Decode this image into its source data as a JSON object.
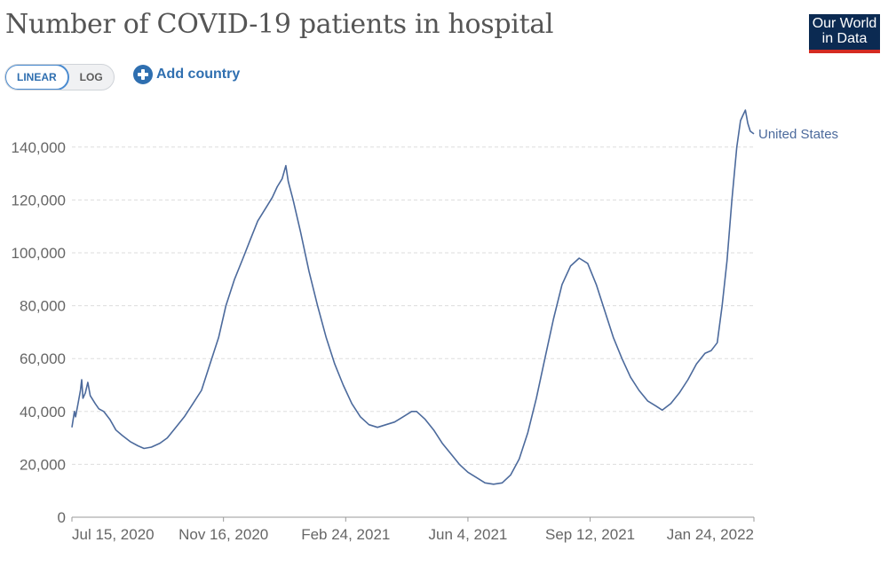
{
  "header": {
    "title": "Number of COVID-19 patients in hospital",
    "logo_line1": "Our World",
    "logo_line2": "in Data"
  },
  "controls": {
    "scale_options": [
      "LINEAR",
      "LOG"
    ],
    "selected_scale": "LINEAR",
    "add_country_label": "Add country"
  },
  "colors": {
    "series": "#4c6a9c",
    "accent": "#2f6fb0",
    "logo_bg": "#0b2a52",
    "logo_stripe": "#d42b21"
  },
  "chart_data": {
    "type": "line",
    "title": "Number of COVID-19 patients in hospital",
    "xlabel": "",
    "ylabel": "",
    "ylim": [
      0,
      140000
    ],
    "yticks": [
      0,
      20000,
      40000,
      60000,
      80000,
      100000,
      120000,
      140000
    ],
    "ytick_labels": [
      "0",
      "20,000",
      "40,000",
      "60,000",
      "80,000",
      "100,000",
      "120,000",
      "140,000"
    ],
    "xlim": [
      "2020-07-15",
      "2022-01-24"
    ],
    "xticks": [
      "2020-07-15",
      "2020-11-16",
      "2021-02-24",
      "2021-06-04",
      "2021-09-12",
      "2022-01-24"
    ],
    "xtick_labels": [
      "Jul 15, 2020",
      "Nov 16, 2020",
      "Feb 24, 2021",
      "Jun 4, 2021",
      "Sep 12, 2021",
      "Jan 24, 2022"
    ],
    "grid": true,
    "series": [
      {
        "name": "United States",
        "points": [
          [
            "2020-07-15",
            34000
          ],
          [
            "2020-07-17",
            40000
          ],
          [
            "2020-07-18",
            38000
          ],
          [
            "2020-07-20",
            43000
          ],
          [
            "2020-07-22",
            48000
          ],
          [
            "2020-07-23",
            52000
          ],
          [
            "2020-07-24",
            45000
          ],
          [
            "2020-07-26",
            47000
          ],
          [
            "2020-07-28",
            51000
          ],
          [
            "2020-07-30",
            46000
          ],
          [
            "2020-08-03",
            43000
          ],
          [
            "2020-08-06",
            41000
          ],
          [
            "2020-08-10",
            40000
          ],
          [
            "2020-08-15",
            37000
          ],
          [
            "2020-08-20",
            33000
          ],
          [
            "2020-08-25",
            31000
          ],
          [
            "2020-09-01",
            28500
          ],
          [
            "2020-09-07",
            27000
          ],
          [
            "2020-09-12",
            26000
          ],
          [
            "2020-09-18",
            26500
          ],
          [
            "2020-09-25",
            28000
          ],
          [
            "2020-10-01",
            30000
          ],
          [
            "2020-10-08",
            34000
          ],
          [
            "2020-10-15",
            38000
          ],
          [
            "2020-10-22",
            43000
          ],
          [
            "2020-10-29",
            48000
          ],
          [
            "2020-11-05",
            58000
          ],
          [
            "2020-11-12",
            68000
          ],
          [
            "2020-11-18",
            80000
          ],
          [
            "2020-11-25",
            90000
          ],
          [
            "2020-12-02",
            98000
          ],
          [
            "2020-12-08",
            105000
          ],
          [
            "2020-12-14",
            112000
          ],
          [
            "2020-12-18",
            115000
          ],
          [
            "2020-12-22",
            118000
          ],
          [
            "2020-12-26",
            121000
          ],
          [
            "2020-12-30",
            125000
          ],
          [
            "2021-01-03",
            128000
          ],
          [
            "2021-01-06",
            133000
          ],
          [
            "2021-01-08",
            127000
          ],
          [
            "2021-01-12",
            120000
          ],
          [
            "2021-01-18",
            108000
          ],
          [
            "2021-01-25",
            93000
          ],
          [
            "2021-02-01",
            80000
          ],
          [
            "2021-02-08",
            68000
          ],
          [
            "2021-02-15",
            58000
          ],
          [
            "2021-02-22",
            50000
          ],
          [
            "2021-03-01",
            43000
          ],
          [
            "2021-03-08",
            38000
          ],
          [
            "2021-03-15",
            35000
          ],
          [
            "2021-03-22",
            34000
          ],
          [
            "2021-03-29",
            35000
          ],
          [
            "2021-04-05",
            36000
          ],
          [
            "2021-04-12",
            38000
          ],
          [
            "2021-04-19",
            40000
          ],
          [
            "2021-04-23",
            40000
          ],
          [
            "2021-04-30",
            37000
          ],
          [
            "2021-05-07",
            33000
          ],
          [
            "2021-05-14",
            28000
          ],
          [
            "2021-05-21",
            24000
          ],
          [
            "2021-05-28",
            20000
          ],
          [
            "2021-06-04",
            17000
          ],
          [
            "2021-06-11",
            15000
          ],
          [
            "2021-06-18",
            13000
          ],
          [
            "2021-06-25",
            12500
          ],
          [
            "2021-07-02",
            13000
          ],
          [
            "2021-07-09",
            16000
          ],
          [
            "2021-07-16",
            22000
          ],
          [
            "2021-07-23",
            32000
          ],
          [
            "2021-07-30",
            45000
          ],
          [
            "2021-08-06",
            60000
          ],
          [
            "2021-08-13",
            75000
          ],
          [
            "2021-08-20",
            88000
          ],
          [
            "2021-08-27",
            95000
          ],
          [
            "2021-09-03",
            98000
          ],
          [
            "2021-09-10",
            96000
          ],
          [
            "2021-09-17",
            88000
          ],
          [
            "2021-09-24",
            78000
          ],
          [
            "2021-10-01",
            68000
          ],
          [
            "2021-10-08",
            60000
          ],
          [
            "2021-10-15",
            53000
          ],
          [
            "2021-10-22",
            48000
          ],
          [
            "2021-10-29",
            44000
          ],
          [
            "2021-11-05",
            42000
          ],
          [
            "2021-11-10",
            40500
          ],
          [
            "2021-11-17",
            43000
          ],
          [
            "2021-11-24",
            47000
          ],
          [
            "2021-12-01",
            52000
          ],
          [
            "2021-12-08",
            58000
          ],
          [
            "2021-12-15",
            62000
          ],
          [
            "2021-12-20",
            63000
          ],
          [
            "2021-12-25",
            66000
          ],
          [
            "2021-12-29",
            80000
          ],
          [
            "2022-01-02",
            97000
          ],
          [
            "2022-01-06",
            120000
          ],
          [
            "2022-01-10",
            140000
          ],
          [
            "2022-01-13",
            150000
          ],
          [
            "2022-01-15",
            152000
          ],
          [
            "2022-01-17",
            154000
          ],
          [
            "2022-01-19",
            149000
          ],
          [
            "2022-01-21",
            146000
          ],
          [
            "2022-01-24",
            145000
          ]
        ]
      }
    ]
  }
}
